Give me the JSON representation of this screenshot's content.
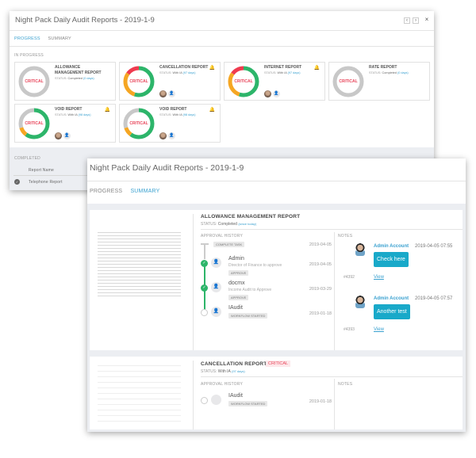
{
  "colors": {
    "accent": "#3aa1d0",
    "critical": "#e8455a",
    "green": "#2db56a",
    "orange": "#f5a623",
    "red": "#ef3b4f",
    "gray": "#c8c8c8",
    "note_button": "#19a9c9"
  },
  "back": {
    "title": "Night Pack Daily Audit Reports - 2019-1-9",
    "prev_icon": "chevron-left-icon",
    "next_icon": "chevron-right-icon",
    "close_icon": "close-icon",
    "prev": "‹",
    "next": "›",
    "close": "×",
    "tabs": [
      {
        "label": "PROGRESS",
        "active": true
      },
      {
        "label": "SUMMARY",
        "active": false
      }
    ],
    "in_progress_label": "IN PROGRESS",
    "cards": [
      {
        "name": "ALLOWANCE MANAGEMENT REPORT",
        "status_label": "STATUS:",
        "status": "Completed",
        "days": "(0 days)",
        "badge": "CRITICAL",
        "bell": false,
        "avatars": false,
        "segments": [
          {
            "color": "gray",
            "fraction": 1
          }
        ]
      },
      {
        "name": "CANCELLATION REPORT",
        "status_label": "STATUS:",
        "status": "With IA",
        "days": "(97 days)",
        "badge": "CRITICAL",
        "bell": true,
        "avatars": true,
        "segments": [
          {
            "color": "green",
            "fraction": 0.55
          },
          {
            "color": "orange",
            "fraction": 0.3
          },
          {
            "color": "red",
            "fraction": 0.15
          }
        ]
      },
      {
        "name": "INTERNET REPORT",
        "status_label": "STATUS:",
        "status": "With IA",
        "days": "(97 days)",
        "badge": "CRITICAL",
        "bell": true,
        "avatars": true,
        "segments": [
          {
            "color": "green",
            "fraction": 0.55
          },
          {
            "color": "orange",
            "fraction": 0.3
          },
          {
            "color": "red",
            "fraction": 0.15
          }
        ]
      },
      {
        "name": "RATE REPORT",
        "status_label": "STATUS:",
        "status": "Completed",
        "days": "(0 days)",
        "badge": "CRITICAL",
        "bell": false,
        "avatars": false,
        "segments": [
          {
            "color": "gray",
            "fraction": 1
          }
        ]
      },
      {
        "name": "VOID REPORT",
        "status_label": "STATUS:",
        "status": "With IA",
        "days": "(98 days)",
        "badge": "CRITICAL",
        "bell": true,
        "avatars": true,
        "segments": [
          {
            "color": "green",
            "fraction": 0.6
          },
          {
            "color": "orange",
            "fraction": 0.1
          },
          {
            "color": "gray",
            "fraction": 0.3
          }
        ]
      },
      {
        "name": "VOID REPORT",
        "status_label": "STATUS:",
        "status": "With IA",
        "days": "(98 days)",
        "badge": "CRITICAL",
        "bell": true,
        "avatars": true,
        "segments": [
          {
            "color": "green",
            "fraction": 0.6
          },
          {
            "color": "orange",
            "fraction": 0.1
          },
          {
            "color": "gray",
            "fraction": 0.3
          }
        ]
      }
    ],
    "completed_label": "COMPLETED",
    "completed_header": "Report Name",
    "completed_rows": [
      {
        "name": "Telephone Report"
      }
    ]
  },
  "front": {
    "title": "Night Pack Daily Audit Reports - 2019-1-9",
    "tabs": [
      {
        "label": "PROGRESS",
        "active": false
      },
      {
        "label": "SUMMARY",
        "active": true
      }
    ],
    "reports": [
      {
        "name": "ALLOWANCE MANAGEMENT REPORT",
        "status_label": "STATUS:",
        "status": "Completed",
        "since": "(since today)",
        "history_label": "APPROVAL HISTORY",
        "notes_label": "NOTES",
        "history": [
          {
            "badge": "COMPLETE TASK",
            "date": "2019-04-05"
          },
          {
            "user": "Admin",
            "desc": "Director of Finance to approve",
            "badge": "APPROVE",
            "date": "2019-04-05"
          },
          {
            "user": "docmx",
            "desc": "Income Audit to Approve",
            "badge": "APPROVE",
            "date": "2019-03-29"
          },
          {
            "user": "IAudit",
            "badge": "WORKFLOW STARTED",
            "date": "2019-01-18"
          }
        ],
        "notes": [
          {
            "author": "Admin Account",
            "time": "2019-04-05 07:55",
            "text": "Check here",
            "id": "#4392",
            "link": "View"
          },
          {
            "author": "Admin Account",
            "time": "2019-04-05 07:57",
            "text": "Another test",
            "id": "#4393",
            "link": "View"
          }
        ]
      },
      {
        "name": "CANCELLATION REPORT",
        "badge": "CRITICAL",
        "status_label": "STATUS:",
        "status": "With IA",
        "since": "(97 days)",
        "history_label": "APPROVAL HISTORY",
        "notes_label": "NOTES",
        "history": [
          {
            "user": "IAudit",
            "badge": "WORKFLOW STARTED",
            "date": "2019-01-18"
          }
        ]
      }
    ]
  }
}
